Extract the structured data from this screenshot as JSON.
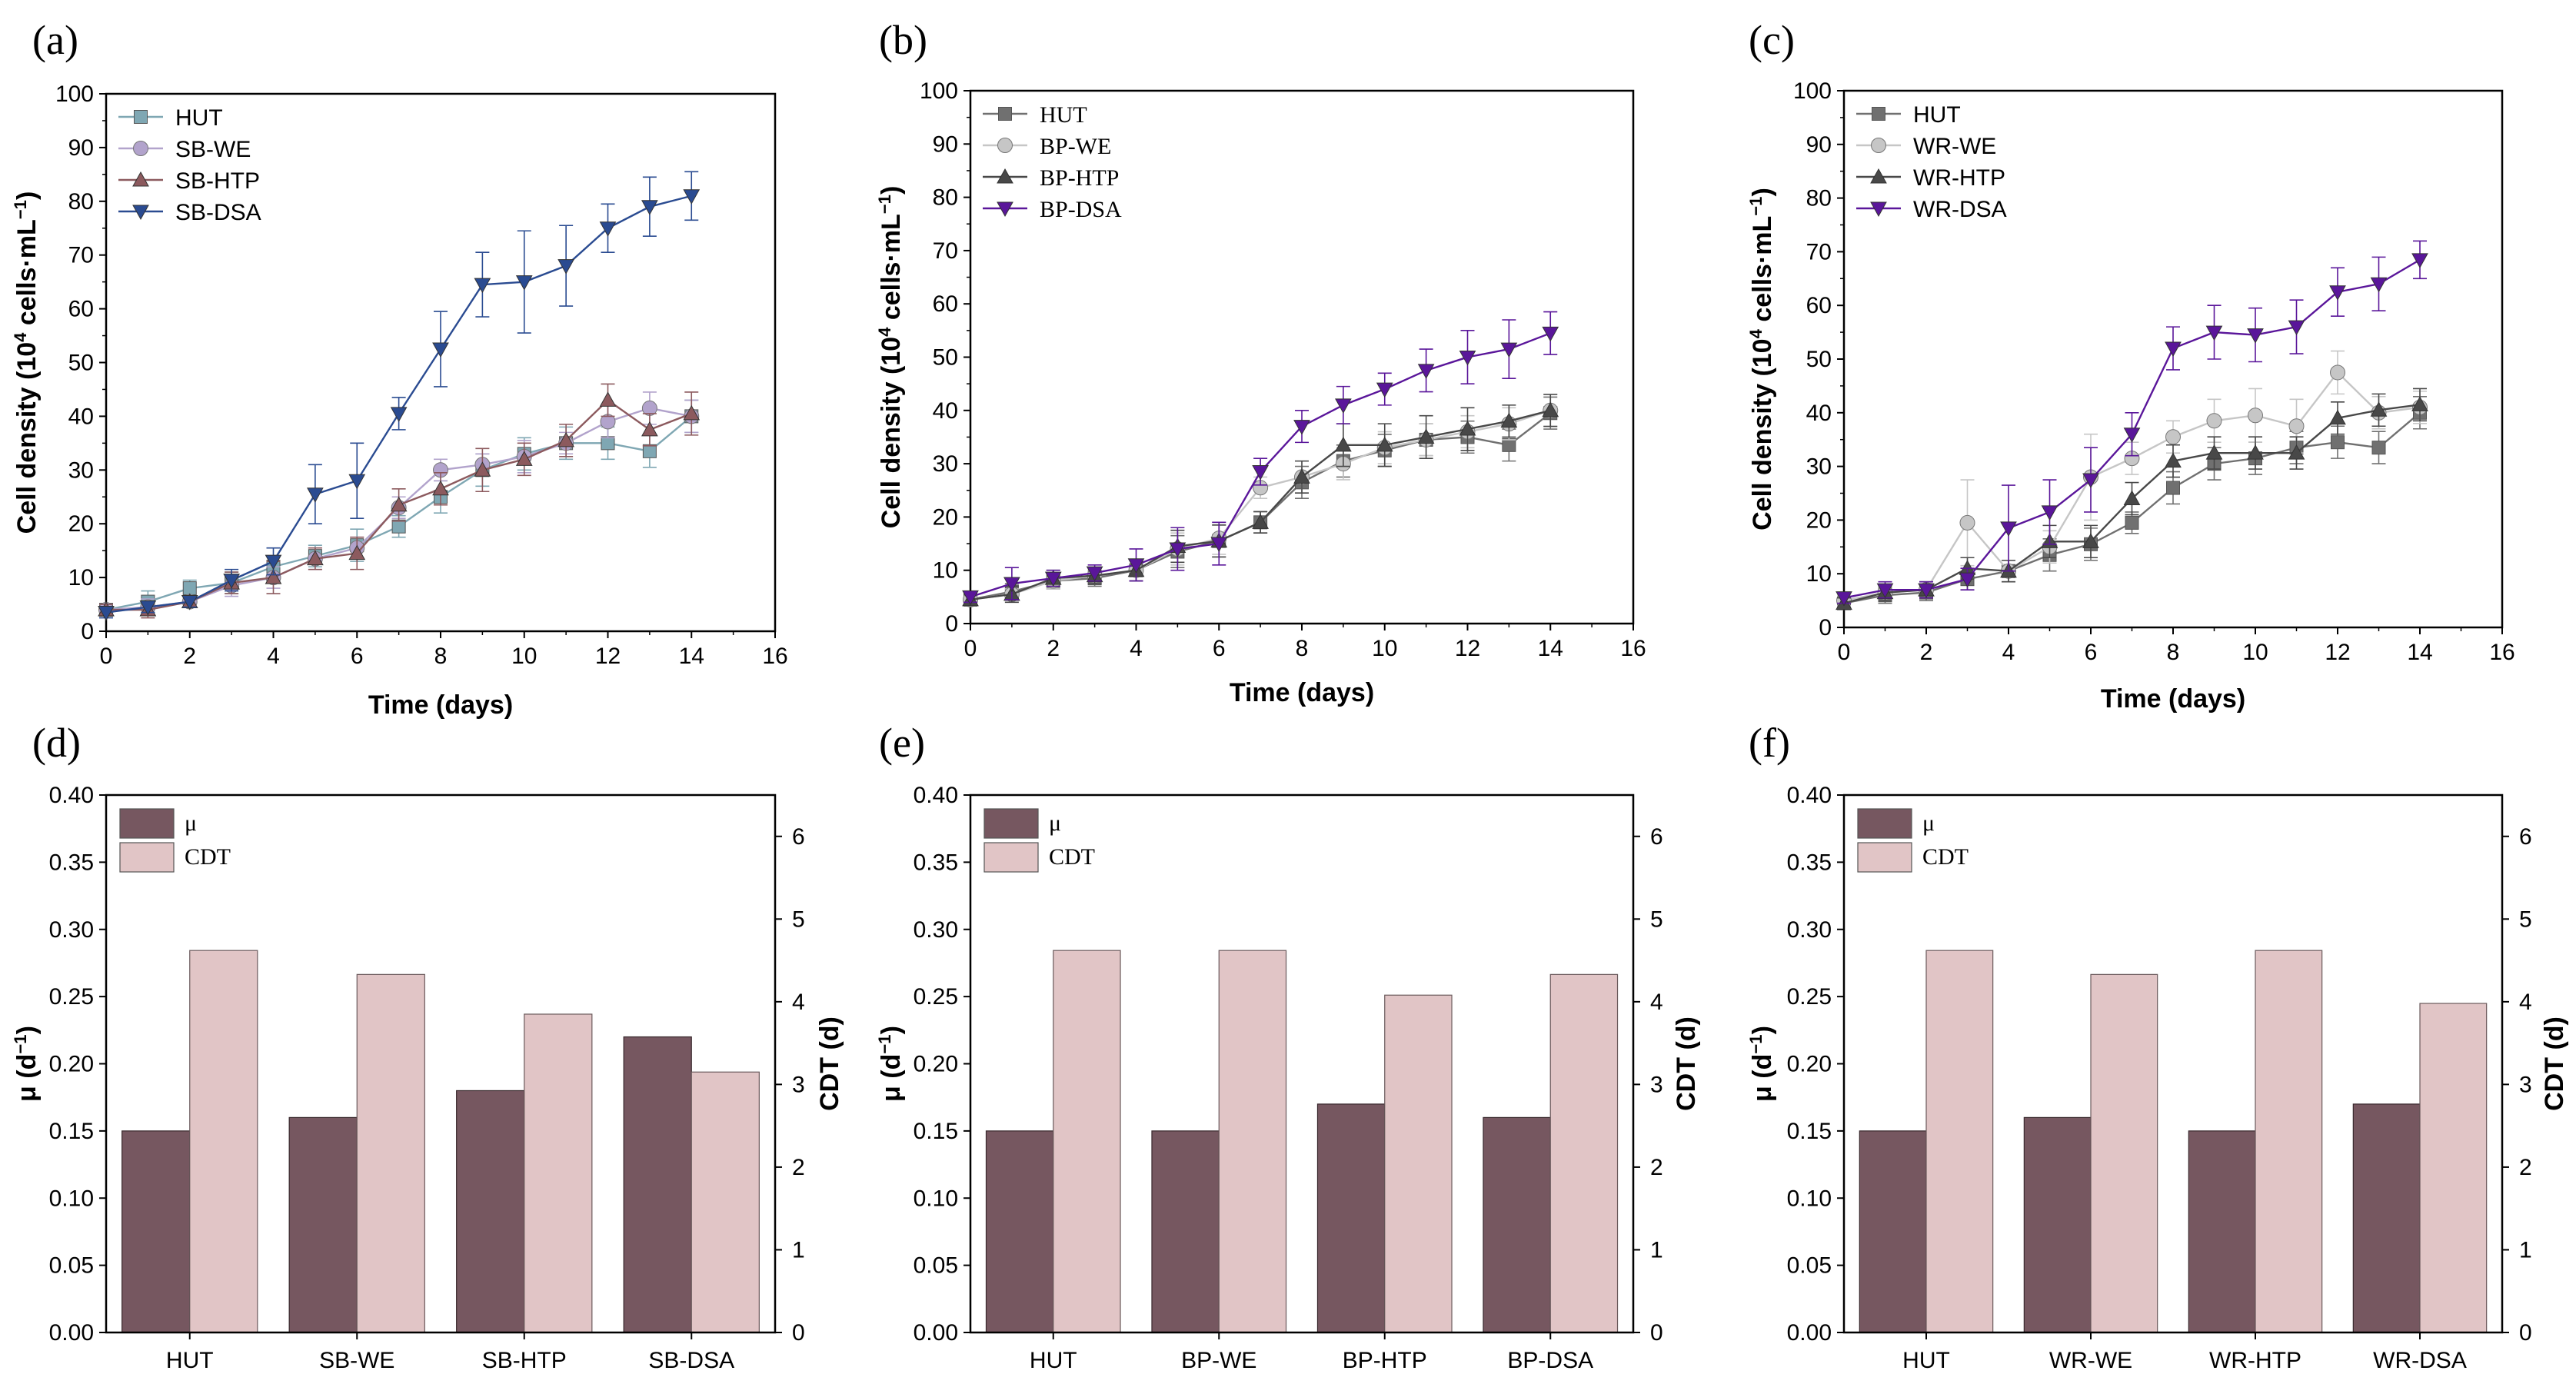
{
  "figure_notes": {
    "superscript_exponent": "4",
    "superscript_minus_one": "−1"
  },
  "chart_data": [
    {
      "id": "a",
      "panel_label": "(a)",
      "type": "line",
      "xlabel": "Time (days)",
      "ylabel": "Cell density (10^4 cells·mL^-1)",
      "ylabel_parts": {
        "before": "Cell density (10",
        "exp": "4",
        "middle": " cells·mL",
        "exp2": "−1",
        "after": ")"
      },
      "xlim": [
        0,
        16
      ],
      "ylim": [
        0,
        100
      ],
      "xticks": [
        "0",
        "2",
        "4",
        "6",
        "8",
        "10",
        "12",
        "14",
        "16"
      ],
      "yticks": [
        "0",
        "10",
        "20",
        "30",
        "40",
        "50",
        "60",
        "70",
        "80",
        "90",
        "100"
      ],
      "legend_position": "top-left",
      "x": [
        0,
        1,
        2,
        3,
        4,
        5,
        6,
        7,
        8,
        9,
        10,
        11,
        12,
        13,
        14
      ],
      "series": [
        {
          "name": "HUT",
          "marker": "square",
          "color": "#7fa7b3",
          "values": [
            4,
            5.5,
            8,
            9,
            12,
            14,
            16,
            19.5,
            25,
            30,
            33,
            35,
            35,
            33.5,
            40
          ],
          "errors": [
            1,
            2,
            1.5,
            2,
            2,
            2,
            3,
            2,
            3,
            3,
            3,
            3,
            3,
            3,
            3
          ]
        },
        {
          "name": "SB-WE",
          "marker": "circle",
          "color": "#b2a3cc",
          "values": [
            4,
            4.5,
            5.5,
            8.5,
            10,
            13.5,
            15.5,
            23,
            30,
            31,
            32.5,
            35,
            39,
            41.5,
            40
          ],
          "errors": [
            1,
            1.5,
            1,
            2,
            2,
            2,
            2,
            2,
            2,
            2,
            3,
            2,
            3,
            3,
            3
          ]
        },
        {
          "name": "SB-HTP",
          "marker": "triangle-up",
          "color": "#8c5a5e",
          "values": [
            4,
            4,
            5.5,
            9,
            10,
            13.5,
            14.5,
            23.5,
            26.5,
            30,
            32,
            35.5,
            43,
            37.5,
            40.5
          ],
          "errors": [
            1,
            1.5,
            1,
            2,
            3,
            2,
            3,
            3,
            3,
            4,
            3,
            3,
            3,
            3,
            4
          ]
        },
        {
          "name": "SB-DSA",
          "marker": "triangle-down",
          "color": "#2a4b91",
          "values": [
            3.5,
            4.5,
            5.5,
            9.5,
            13,
            25.5,
            28,
            40.5,
            52.5,
            64.5,
            65,
            68,
            75,
            79,
            81
          ],
          "errors": [
            1,
            1,
            1,
            2,
            2.5,
            5.5,
            7,
            3,
            7,
            6,
            9.5,
            7.5,
            4.5,
            5.5,
            4.5
          ]
        }
      ]
    },
    {
      "id": "b",
      "panel_label": "(b)",
      "type": "line",
      "xlabel": "Time (days)",
      "ylabel": "Cell density (10^4 cells·mL^-1)",
      "ylabel_parts": {
        "before": "Cell density (10",
        "exp": "4",
        "middle": " cells·mL",
        "exp2": "−1",
        "after": ")"
      },
      "xlim": [
        0,
        16
      ],
      "ylim": [
        0,
        100
      ],
      "xticks": [
        "0",
        "2",
        "4",
        "6",
        "8",
        "10",
        "12",
        "14",
        "16"
      ],
      "yticks": [
        "0",
        "10",
        "20",
        "30",
        "40",
        "50",
        "60",
        "70",
        "80",
        "90",
        "100"
      ],
      "legend_position": "top-left",
      "x": [
        0,
        1,
        2,
        3,
        4,
        5,
        6,
        7,
        8,
        9,
        10,
        11,
        12,
        13,
        14
      ],
      "series": [
        {
          "name": "HUT",
          "marker": "square",
          "color": "#707070",
          "values": [
            4.5,
            6,
            8,
            8.5,
            10,
            13.5,
            15.5,
            19,
            26.5,
            30.5,
            32.5,
            34.5,
            35,
            33.5,
            39.5
          ],
          "errors": [
            1,
            1.5,
            1.5,
            1.5,
            2,
            3,
            3,
            2,
            3,
            3,
            3,
            3,
            3,
            3,
            3
          ]
        },
        {
          "name": "BP-WE",
          "marker": "circle",
          "color": "#c6c6c6",
          "values": [
            4.5,
            5.5,
            8,
            9,
            10,
            14,
            16,
            25.5,
            27.5,
            30,
            33,
            34.5,
            36,
            37.5,
            40
          ],
          "errors": [
            1,
            1,
            1.5,
            1.5,
            2,
            3,
            3,
            2,
            3,
            3,
            3,
            3,
            3,
            3,
            3
          ]
        },
        {
          "name": "BP-HTP",
          "marker": "triangle-up",
          "color": "#484848",
          "values": [
            4.5,
            5.5,
            8.5,
            9,
            10,
            14.5,
            15.5,
            19,
            27.5,
            33.5,
            33.5,
            35,
            36.5,
            38,
            40
          ],
          "errors": [
            1,
            1.5,
            1.5,
            1.5,
            2,
            3,
            3,
            2,
            3,
            4,
            4,
            4,
            4,
            3,
            3
          ]
        },
        {
          "name": "BP-DSA",
          "marker": "triangle-down",
          "color": "#5a169a",
          "values": [
            5,
            7.5,
            8.5,
            9.5,
            11,
            14,
            15,
            28.5,
            37,
            41,
            44,
            47.5,
            50,
            51.5,
            54.5
          ],
          "errors": [
            1,
            3,
            1.5,
            1.5,
            3,
            4,
            4,
            2.5,
            3,
            3.5,
            3,
            4,
            5,
            5.5,
            4
          ]
        }
      ]
    },
    {
      "id": "c",
      "panel_label": "(c)",
      "type": "line",
      "xlabel": "Time (days)",
      "ylabel": "Cell density (10^4 cells·mL^-1)",
      "ylabel_parts": {
        "before": "Cell density (10",
        "exp": "4",
        "middle": " cells·mL",
        "exp2": "−1",
        "after": ")"
      },
      "xlim": [
        0,
        16
      ],
      "ylim": [
        0,
        100
      ],
      "xticks": [
        "0",
        "2",
        "4",
        "6",
        "8",
        "10",
        "12",
        "14",
        "16"
      ],
      "yticks": [
        "0",
        "10",
        "20",
        "30",
        "40",
        "50",
        "60",
        "70",
        "80",
        "90",
        "100"
      ],
      "legend_position": "top-left",
      "x": [
        0,
        1,
        2,
        3,
        4,
        5,
        6,
        7,
        8,
        9,
        10,
        11,
        12,
        13,
        14
      ],
      "series": [
        {
          "name": "HUT",
          "marker": "square",
          "color": "#707070",
          "values": [
            4.5,
            6,
            6.5,
            9,
            10.5,
            13.5,
            15.5,
            19.5,
            26,
            30.5,
            31.5,
            33.5,
            34.5,
            33.5,
            40
          ],
          "errors": [
            1,
            1.5,
            1.5,
            2,
            2,
            3,
            3,
            2,
            3,
            3,
            3,
            3,
            3,
            3,
            3
          ]
        },
        {
          "name": "WR-WE",
          "marker": "circle",
          "color": "#c6c6c6",
          "values": [
            5,
            6.5,
            7,
            19.5,
            10.5,
            15,
            28,
            31.5,
            35.5,
            38.5,
            39.5,
            37.5,
            47.5,
            40,
            41
          ],
          "errors": [
            1,
            1.5,
            1.5,
            8,
            2,
            3,
            8,
            3,
            3,
            4,
            5,
            5,
            4,
            3,
            3
          ]
        },
        {
          "name": "WR-HTP",
          "marker": "triangle-up",
          "color": "#484848",
          "values": [
            4.5,
            6.5,
            7,
            11,
            10.5,
            16,
            16,
            24,
            31,
            32.5,
            32.5,
            32.5,
            39,
            40.5,
            41.5
          ],
          "errors": [
            1,
            1.5,
            1.5,
            2,
            2,
            3,
            3,
            3,
            3,
            3,
            3,
            3,
            3,
            3,
            3
          ]
        },
        {
          "name": "WR-DSA",
          "marker": "triangle-down",
          "color": "#5a169a",
          "values": [
            5.5,
            7,
            7,
            9,
            18.5,
            21.5,
            27.5,
            36,
            52,
            55,
            54.5,
            56,
            62.5,
            64,
            68.5
          ],
          "errors": [
            1,
            1.5,
            1.5,
            2,
            8,
            6,
            6,
            4,
            4,
            5,
            5,
            5,
            4.5,
            5,
            3.5
          ]
        }
      ]
    },
    {
      "id": "d",
      "panel_label": "(d)",
      "type": "bar",
      "categories": [
        "HUT",
        "SB-WE",
        "SB-HTP",
        "SB-DSA"
      ],
      "ylabel": "μ (d^-1)",
      "ylabel_parts": {
        "before": "μ (d",
        "exp": "−1",
        "after": ")"
      },
      "y2label": "CDT (d)",
      "ylim": [
        0,
        0.4
      ],
      "y2lim": [
        0,
        6.5
      ],
      "yticks": [
        "0.00",
        "0.05",
        "0.10",
        "0.15",
        "0.20",
        "0.25",
        "0.30",
        "0.35",
        "0.40"
      ],
      "y2ticks": [
        "0",
        "1",
        "2",
        "3",
        "4",
        "5",
        "6"
      ],
      "legend_position": "top-left",
      "series": [
        {
          "name": "μ",
          "axis": "left",
          "color": "#765760",
          "values": [
            0.15,
            0.16,
            0.18,
            0.22
          ]
        },
        {
          "name": "CDT",
          "axis": "right",
          "color": "#e1c5c6",
          "values": [
            4.62,
            4.33,
            3.85,
            3.15
          ]
        }
      ]
    },
    {
      "id": "e",
      "panel_label": "(e)",
      "type": "bar",
      "categories": [
        "HUT",
        "BP-WE",
        "BP-HTP",
        "BP-DSA"
      ],
      "ylabel": "μ (d^-1)",
      "ylabel_parts": {
        "before": "μ (d",
        "exp": "−1",
        "after": ")"
      },
      "y2label": "CDT (d)",
      "ylim": [
        0,
        0.4
      ],
      "y2lim": [
        0,
        6.5
      ],
      "yticks": [
        "0.00",
        "0.05",
        "0.10",
        "0.15",
        "0.20",
        "0.25",
        "0.30",
        "0.35",
        "0.40"
      ],
      "y2ticks": [
        "0",
        "1",
        "2",
        "3",
        "4",
        "5",
        "6"
      ],
      "legend_position": "top-left",
      "series": [
        {
          "name": "μ",
          "axis": "left",
          "color": "#765760",
          "values": [
            0.15,
            0.15,
            0.17,
            0.16
          ]
        },
        {
          "name": "CDT",
          "axis": "right",
          "color": "#e1c5c6",
          "values": [
            4.62,
            4.62,
            4.08,
            4.33
          ]
        }
      ]
    },
    {
      "id": "f",
      "panel_label": "(f)",
      "type": "bar",
      "categories": [
        "HUT",
        "WR-WE",
        "WR-HTP",
        "WR-DSA"
      ],
      "ylabel": "μ (d^-1)",
      "ylabel_parts": {
        "before": "μ (d",
        "exp": "−1",
        "after": ")"
      },
      "y2label": "CDT (d)",
      "ylim": [
        0,
        0.4
      ],
      "y2lim": [
        0,
        6.5
      ],
      "yticks": [
        "0.00",
        "0.05",
        "0.10",
        "0.15",
        "0.20",
        "0.25",
        "0.30",
        "0.35",
        "0.40"
      ],
      "y2ticks": [
        "0",
        "1",
        "2",
        "3",
        "4",
        "5",
        "6"
      ],
      "legend_position": "top-left",
      "series": [
        {
          "name": "μ",
          "axis": "left",
          "color": "#765760",
          "values": [
            0.15,
            0.16,
            0.15,
            0.17
          ]
        },
        {
          "name": "CDT",
          "axis": "right",
          "color": "#e1c5c6",
          "values": [
            4.62,
            4.33,
            4.62,
            3.98
          ]
        }
      ]
    }
  ]
}
